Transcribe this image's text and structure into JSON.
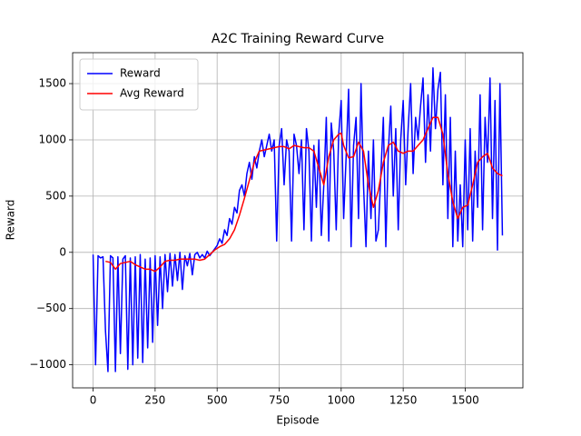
{
  "chart_data": {
    "type": "line",
    "title": "A2C Training Reward Curve",
    "xlabel": "Episode",
    "ylabel": "Reward",
    "xlim": [
      -82.5,
      1732.5
    ],
    "ylim": [
      -1205,
      1775
    ],
    "xticks": [
      0,
      250,
      500,
      750,
      1000,
      1250,
      1500
    ],
    "yticks": [
      {
        "value": -1000,
        "label": "−1000"
      },
      {
        "value": -500,
        "label": "−500"
      },
      0,
      500,
      1000,
      1500
    ],
    "grid": true,
    "legend": "upper left",
    "series": [
      {
        "name": "Reward",
        "color": "#0000ff",
        "x": [
          0,
          10,
          20,
          30,
          40,
          50,
          60,
          70,
          80,
          90,
          100,
          110,
          120,
          130,
          140,
          150,
          160,
          170,
          180,
          190,
          200,
          210,
          220,
          230,
          240,
          250,
          260,
          270,
          280,
          290,
          300,
          310,
          320,
          330,
          340,
          350,
          360,
          370,
          380,
          390,
          400,
          410,
          420,
          430,
          440,
          450,
          460,
          470,
          480,
          490,
          500,
          510,
          520,
          530,
          540,
          550,
          560,
          570,
          580,
          590,
          600,
          610,
          620,
          630,
          640,
          650,
          660,
          670,
          680,
          690,
          700,
          710,
          720,
          730,
          740,
          750,
          760,
          770,
          780,
          790,
          800,
          810,
          820,
          830,
          840,
          850,
          860,
          870,
          880,
          890,
          900,
          910,
          920,
          930,
          940,
          950,
          960,
          970,
          980,
          990,
          1000,
          1010,
          1020,
          1030,
          1040,
          1050,
          1060,
          1070,
          1080,
          1090,
          1100,
          1110,
          1120,
          1130,
          1140,
          1150,
          1160,
          1170,
          1180,
          1190,
          1200,
          1210,
          1220,
          1230,
          1240,
          1250,
          1260,
          1270,
          1280,
          1290,
          1300,
          1310,
          1320,
          1330,
          1340,
          1350,
          1360,
          1370,
          1380,
          1390,
          1400,
          1410,
          1420,
          1430,
          1440,
          1450,
          1460,
          1470,
          1480,
          1490,
          1500,
          1510,
          1520,
          1530,
          1540,
          1550,
          1560,
          1570,
          1580,
          1590,
          1600,
          1610,
          1620,
          1630,
          1640,
          1650
        ],
        "values": [
          -20,
          -1000,
          -30,
          -50,
          -40,
          -700,
          -1060,
          -30,
          -50,
          -1060,
          -40,
          -900,
          -60,
          -30,
          -1040,
          -50,
          -1000,
          -40,
          -940,
          -20,
          -980,
          -60,
          -850,
          -50,
          -800,
          -30,
          -650,
          -40,
          -500,
          -20,
          -350,
          -10,
          -300,
          -20,
          -250,
          0,
          -330,
          -30,
          -120,
          -10,
          -200,
          -20,
          0,
          -50,
          -20,
          -50,
          10,
          -30,
          0,
          30,
          60,
          120,
          80,
          200,
          150,
          300,
          250,
          400,
          350,
          550,
          600,
          500,
          700,
          800,
          650,
          850,
          750,
          900,
          1000,
          850,
          950,
          1050,
          900,
          1000,
          100,
          950,
          1100,
          600,
          1000,
          900,
          100,
          1050,
          950,
          700,
          1000,
          200,
          1100,
          900,
          100,
          950,
          400,
          1000,
          150,
          600,
          1200,
          100,
          1150,
          900,
          200,
          1050,
          1350,
          300,
          850,
          1450,
          50,
          950,
          1200,
          300,
          1500,
          600,
          50,
          900,
          300,
          1000,
          100,
          200,
          700,
          1200,
          50,
          900,
          1300,
          500,
          1100,
          200,
          1000,
          1350,
          600,
          1100,
          1500,
          700,
          1200,
          1000,
          1300,
          1550,
          800,
          1400,
          900,
          1640,
          1100,
          1450,
          1600,
          600,
          1400,
          300,
          1200,
          50,
          900,
          100,
          600,
          50,
          1000,
          200,
          1100,
          100,
          900,
          400,
          1400,
          200,
          1200,
          800,
          1550,
          300,
          1350,
          20,
          1500,
          150
        ]
      },
      {
        "name": "Avg Reward",
        "color": "#ff0000",
        "x": [
          50,
          70,
          90,
          110,
          130,
          150,
          170,
          190,
          210,
          230,
          250,
          270,
          290,
          310,
          330,
          350,
          370,
          390,
          410,
          430,
          450,
          470,
          490,
          510,
          530,
          550,
          570,
          590,
          610,
          630,
          650,
          670,
          690,
          710,
          730,
          750,
          770,
          790,
          810,
          830,
          850,
          870,
          890,
          910,
          930,
          950,
          970,
          990,
          1000,
          1010,
          1030,
          1050,
          1070,
          1090,
          1110,
          1130,
          1150,
          1170,
          1190,
          1210,
          1230,
          1250,
          1270,
          1290,
          1310,
          1330,
          1350,
          1370,
          1390,
          1410,
          1430,
          1450,
          1470,
          1490,
          1510,
          1530,
          1550,
          1570,
          1590,
          1610,
          1630,
          1650
        ],
        "values": [
          -80,
          -90,
          -150,
          -100,
          -90,
          -80,
          -110,
          -130,
          -150,
          -150,
          -170,
          -130,
          -80,
          -70,
          -70,
          -60,
          -60,
          -60,
          -60,
          -70,
          -60,
          -20,
          20,
          50,
          70,
          120,
          200,
          330,
          480,
          640,
          800,
          900,
          910,
          920,
          930,
          940,
          940,
          920,
          950,
          940,
          930,
          930,
          900,
          750,
          600,
          850,
          1000,
          1050,
          1060,
          950,
          840,
          850,
          980,
          900,
          600,
          400,
          550,
          800,
          950,
          980,
          900,
          880,
          900,
          900,
          950,
          1000,
          1100,
          1200,
          1200,
          1050,
          700,
          450,
          300,
          400,
          420,
          600,
          800,
          850,
          880,
          750,
          700,
          680
        ]
      }
    ]
  }
}
